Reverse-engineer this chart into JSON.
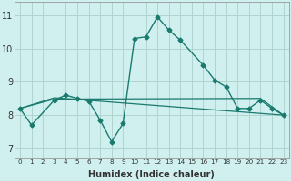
{
  "xlabel": "Humidex (Indice chaleur)",
  "bg_color": "#d0f0f0",
  "grid_color": "#b0d4d0",
  "line_color": "#1a7a6e",
  "x_ticks": [
    0,
    1,
    2,
    3,
    4,
    5,
    6,
    7,
    8,
    9,
    10,
    11,
    12,
    13,
    14,
    15,
    16,
    17,
    18,
    19,
    20,
    21,
    22,
    23
  ],
  "ylim": [
    6.7,
    11.4
  ],
  "xlim": [
    -0.5,
    23.5
  ],
  "yticks": [
    7,
    8,
    9,
    10
  ],
  "ytick_top": 11,
  "main_line": {
    "x": [
      0,
      1,
      3,
      4,
      5,
      6,
      7,
      8,
      9,
      10,
      11,
      12,
      13,
      14,
      16,
      17,
      18,
      19,
      20,
      21,
      22,
      23
    ],
    "y": [
      8.2,
      7.7,
      8.45,
      8.6,
      8.5,
      8.42,
      7.85,
      7.2,
      7.75,
      10.3,
      10.35,
      10.95,
      10.55,
      10.25,
      9.5,
      9.05,
      8.85,
      8.2,
      8.2,
      8.45,
      8.2,
      8.0
    ]
  },
  "flat_line1": {
    "x": [
      0,
      3,
      23
    ],
    "y": [
      8.2,
      8.52,
      8.0
    ]
  },
  "flat_line2": {
    "x": [
      0,
      3,
      21,
      23
    ],
    "y": [
      8.2,
      8.48,
      8.5,
      8.0
    ]
  }
}
